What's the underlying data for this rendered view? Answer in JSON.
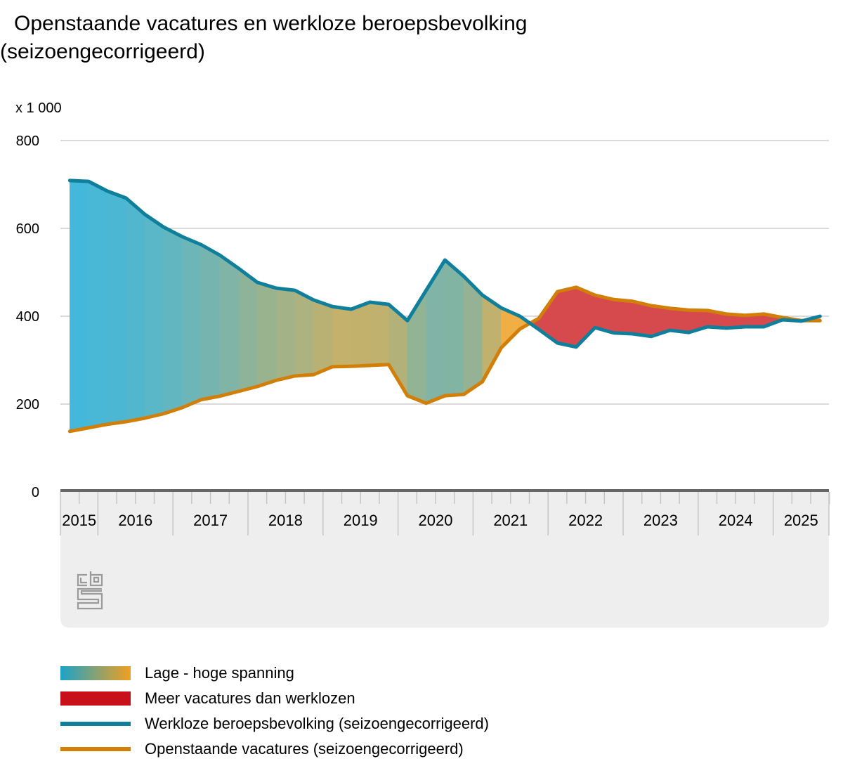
{
  "title": {
    "line1": "Openstaande vacatures en werkloze beroepsbevolking",
    "line2": "(seizoengecorrigeerd)"
  },
  "logo": "cbs",
  "chart_data": {
    "type": "area",
    "title": "Openstaande vacatures en werkloze beroepsbevolking (seizoengecorrigeerd)",
    "ylabel": "x 1 000",
    "ylim": [
      0,
      800
    ],
    "yticks": [
      0,
      200,
      400,
      600,
      800
    ],
    "grid": true,
    "x_years": [
      "2015",
      "2016",
      "2017",
      "2018",
      "2019",
      "2020",
      "2021",
      "2022",
      "2023",
      "2024",
      "2025"
    ],
    "x": [
      "2015Q3",
      "2015Q4",
      "2016Q1",
      "2016Q2",
      "2016Q3",
      "2016Q4",
      "2017Q1",
      "2017Q2",
      "2017Q3",
      "2017Q4",
      "2018Q1",
      "2018Q2",
      "2018Q3",
      "2018Q4",
      "2019Q1",
      "2019Q2",
      "2019Q3",
      "2019Q4",
      "2020Q1",
      "2020Q2",
      "2020Q3",
      "2020Q4",
      "2021Q1",
      "2021Q2",
      "2021Q3",
      "2021Q4",
      "2022Q1",
      "2022Q2",
      "2022Q3",
      "2022Q4",
      "2023Q1",
      "2023Q2",
      "2023Q3",
      "2023Q4",
      "2024Q1",
      "2024Q2",
      "2024Q3",
      "2024Q4",
      "2025Q1",
      "2025Q2",
      "2025Q3"
    ],
    "series": [
      {
        "name": "Werkloze beroepsbevolking (seizoengecorrigeerd)",
        "color": "#0f7f9c",
        "values": [
          709,
          707,
          685,
          669,
          632,
          603,
          581,
          563,
          539,
          509,
          477,
          464,
          459,
          437,
          422,
          416,
          432,
          427,
          390,
          459,
          528,
          491,
          448,
          419,
          400,
          370,
          339,
          330,
          374,
          362,
          360,
          354,
          368,
          363,
          376,
          373,
          376,
          376,
          392,
          389,
          400
        ]
      },
      {
        "name": "Openstaande vacatures (seizoengecorrigeerd)",
        "color": "#d27f0a",
        "values": [
          138,
          146,
          154,
          160,
          168,
          178,
          192,
          210,
          218,
          229,
          240,
          254,
          264,
          267,
          285,
          286,
          288,
          290,
          219,
          202,
          219,
          222,
          251,
          328,
          371,
          395,
          456,
          466,
          448,
          438,
          434,
          424,
          418,
          414,
          413,
          405,
          402,
          405,
          397,
          390,
          390
        ]
      }
    ],
    "fills": [
      {
        "name": "Lage - hoge spanning",
        "colors": [
          "#1aa3c8",
          "#f0a020"
        ]
      },
      {
        "name": "Meer vacatures dan werklozen",
        "color": "#c8101a"
      }
    ],
    "legend_position": "bottom"
  },
  "legend": [
    {
      "label": "Lage - hoge spanning"
    },
    {
      "label": "Meer vacatures dan werklozen"
    },
    {
      "label": "Werkloze beroepsbevolking (seizoengecorrigeerd)"
    },
    {
      "label": "Openstaande vacatures (seizoengecorrigeerd)"
    }
  ]
}
